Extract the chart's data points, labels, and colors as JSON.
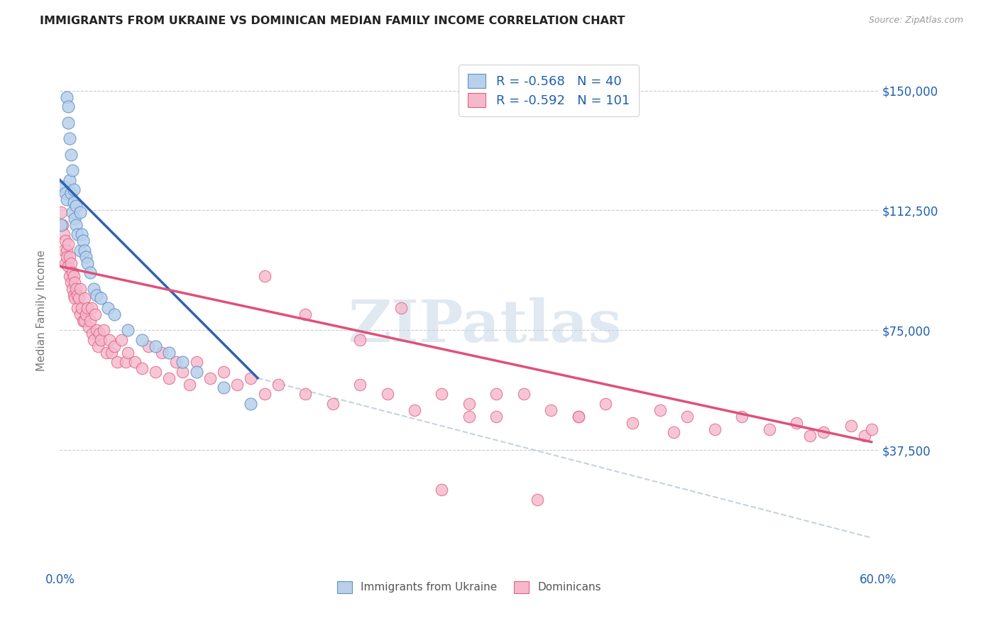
{
  "title": "IMMIGRANTS FROM UKRAINE VS DOMINICAN MEDIAN FAMILY INCOME CORRELATION CHART",
  "source": "Source: ZipAtlas.com",
  "ylabel": "Median Family Income",
  "ytick_labels": [
    "$37,500",
    "$75,000",
    "$112,500",
    "$150,000"
  ],
  "ytick_values": [
    37500,
    75000,
    112500,
    150000
  ],
  "watermark": "ZIPatlas",
  "legend_ukraine": "R = -0.568   N = 40",
  "legend_dominican": "R = -0.592   N = 101",
  "legend_label_ukraine": "Immigrants from Ukraine",
  "legend_label_dominican": "Dominicans",
  "ukraine_fill_color": "#b8d0ea",
  "ukraine_edge_color": "#6090c8",
  "dominican_fill_color": "#f5b8cc",
  "dominican_edge_color": "#e06080",
  "ukraine_line_color": "#3060b0",
  "dominican_line_color": "#e0507a",
  "background_color": "#ffffff",
  "axis_label_color": "#2060b0",
  "grid_color": "#cccccc",
  "ukraine_scatter_x": [
    0.001,
    0.003,
    0.004,
    0.005,
    0.005,
    0.006,
    0.006,
    0.007,
    0.007,
    0.008,
    0.008,
    0.009,
    0.009,
    0.01,
    0.01,
    0.011,
    0.012,
    0.012,
    0.013,
    0.015,
    0.015,
    0.016,
    0.017,
    0.018,
    0.019,
    0.02,
    0.022,
    0.025,
    0.027,
    0.03,
    0.035,
    0.04,
    0.05,
    0.06,
    0.07,
    0.08,
    0.09,
    0.1,
    0.12,
    0.14
  ],
  "ukraine_scatter_y": [
    108000,
    120000,
    118000,
    116000,
    148000,
    145000,
    140000,
    135000,
    122000,
    130000,
    118000,
    125000,
    112000,
    119000,
    115000,
    110000,
    108000,
    114000,
    105000,
    112000,
    100000,
    105000,
    103000,
    100000,
    98000,
    96000,
    93000,
    88000,
    86000,
    85000,
    82000,
    80000,
    75000,
    72000,
    70000,
    68000,
    65000,
    62000,
    57000,
    52000
  ],
  "dominican_scatter_x": [
    0.001,
    0.002,
    0.003,
    0.003,
    0.004,
    0.004,
    0.005,
    0.005,
    0.006,
    0.006,
    0.007,
    0.007,
    0.008,
    0.008,
    0.009,
    0.009,
    0.01,
    0.01,
    0.011,
    0.011,
    0.012,
    0.013,
    0.013,
    0.014,
    0.015,
    0.015,
    0.016,
    0.017,
    0.018,
    0.018,
    0.019,
    0.02,
    0.021,
    0.022,
    0.023,
    0.024,
    0.025,
    0.026,
    0.027,
    0.028,
    0.029,
    0.03,
    0.032,
    0.034,
    0.036,
    0.038,
    0.04,
    0.042,
    0.045,
    0.048,
    0.05,
    0.055,
    0.06,
    0.065,
    0.07,
    0.075,
    0.08,
    0.085,
    0.09,
    0.095,
    0.1,
    0.11,
    0.12,
    0.13,
    0.14,
    0.15,
    0.16,
    0.18,
    0.2,
    0.22,
    0.24,
    0.26,
    0.28,
    0.3,
    0.32,
    0.34,
    0.36,
    0.38,
    0.4,
    0.42,
    0.44,
    0.46,
    0.48,
    0.5,
    0.52,
    0.54,
    0.56,
    0.58,
    0.59,
    0.595,
    0.28,
    0.35,
    0.3,
    0.25,
    0.15,
    0.18,
    0.22,
    0.32,
    0.38,
    0.45,
    0.55
  ],
  "dominican_scatter_y": [
    112000,
    108000,
    105000,
    100000,
    103000,
    96000,
    100000,
    98000,
    95000,
    102000,
    98000,
    92000,
    96000,
    90000,
    93000,
    88000,
    92000,
    86000,
    90000,
    85000,
    88000,
    86000,
    82000,
    85000,
    80000,
    88000,
    82000,
    78000,
    85000,
    78000,
    80000,
    82000,
    76000,
    78000,
    82000,
    74000,
    72000,
    80000,
    75000,
    70000,
    74000,
    72000,
    75000,
    68000,
    72000,
    68000,
    70000,
    65000,
    72000,
    65000,
    68000,
    65000,
    63000,
    70000,
    62000,
    68000,
    60000,
    65000,
    62000,
    58000,
    65000,
    60000,
    62000,
    58000,
    60000,
    55000,
    58000,
    55000,
    52000,
    58000,
    55000,
    50000,
    55000,
    52000,
    48000,
    55000,
    50000,
    48000,
    52000,
    46000,
    50000,
    48000,
    44000,
    48000,
    44000,
    46000,
    43000,
    45000,
    42000,
    44000,
    25000,
    22000,
    48000,
    82000,
    92000,
    80000,
    72000,
    55000,
    48000,
    43000,
    42000
  ],
  "xmin": 0.0,
  "xmax": 0.6,
  "ymin": 0,
  "ymax": 162500,
  "ukraine_line_x": [
    0.0,
    0.145
  ],
  "ukraine_line_y": [
    122000,
    60000
  ],
  "dominican_line_x": [
    0.0,
    0.595
  ],
  "dominican_line_y": [
    95000,
    40000
  ],
  "dashed_line_x": [
    0.145,
    0.595
  ],
  "dashed_line_y": [
    60000,
    10000
  ]
}
